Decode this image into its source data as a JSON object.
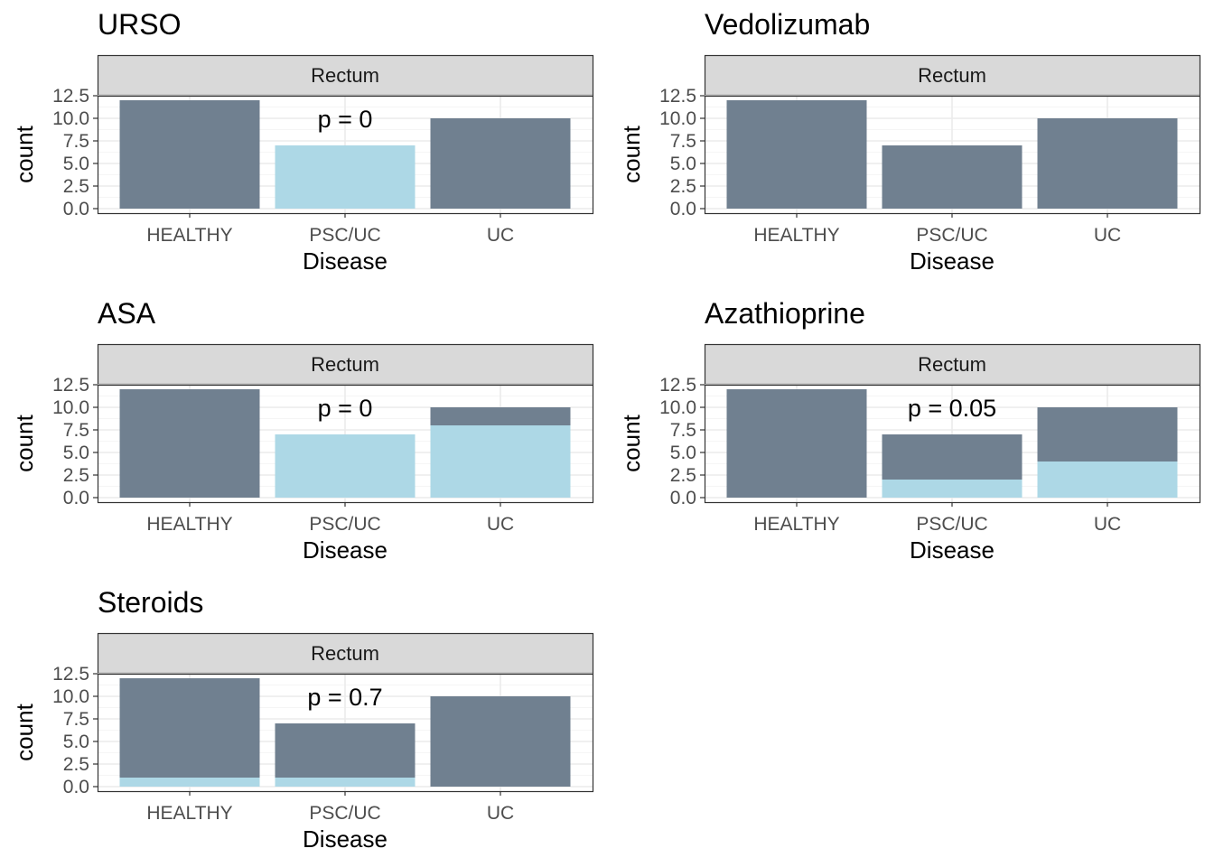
{
  "colors": {
    "dark_fill": "#708090",
    "light_fill": "#add8e6",
    "strip_bg": "#d9d9d9",
    "grid_major": "#ebebeb",
    "grid_minor": "#f5f5f5",
    "border": "#333333"
  },
  "chart_data": [
    {
      "type": "bar",
      "stacked": true,
      "title": "URSO",
      "facet": "Rectum",
      "xlabel": "Disease",
      "ylabel": "count",
      "categories": [
        "HEALTHY",
        "PSC/UC",
        "UC"
      ],
      "yticks": [
        "0.0",
        "2.5",
        "5.0",
        "7.5",
        "10.0",
        "12.5"
      ],
      "ylim": [
        0,
        12.5
      ],
      "annotation": "p = 0",
      "annotation_category": "PSC/UC",
      "annotation_y": 10,
      "series": [
        {
          "color": "#add8e6",
          "values": [
            0,
            7,
            0
          ]
        },
        {
          "color": "#708090",
          "values": [
            12,
            0,
            10
          ]
        }
      ]
    },
    {
      "type": "bar",
      "stacked": true,
      "title": "Vedolizumab",
      "facet": "Rectum",
      "xlabel": "Disease",
      "ylabel": "count",
      "categories": [
        "HEALTHY",
        "PSC/UC",
        "UC"
      ],
      "yticks": [
        "0.0",
        "2.5",
        "5.0",
        "7.5",
        "10.0",
        "12.5"
      ],
      "ylim": [
        0,
        12.5
      ],
      "annotation": "",
      "series": [
        {
          "color": "#add8e6",
          "values": [
            0,
            0,
            0
          ]
        },
        {
          "color": "#708090",
          "values": [
            12,
            7,
            10
          ]
        }
      ]
    },
    {
      "type": "bar",
      "stacked": true,
      "title": "ASA",
      "facet": "Rectum",
      "xlabel": "Disease",
      "ylabel": "count",
      "categories": [
        "HEALTHY",
        "PSC/UC",
        "UC"
      ],
      "yticks": [
        "0.0",
        "2.5",
        "5.0",
        "7.5",
        "10.0",
        "12.5"
      ],
      "ylim": [
        0,
        12.5
      ],
      "annotation": "p = 0",
      "annotation_category": "PSC/UC",
      "annotation_y": 10,
      "series": [
        {
          "color": "#add8e6",
          "values": [
            0,
            7,
            8
          ]
        },
        {
          "color": "#708090",
          "values": [
            12,
            0,
            2
          ]
        }
      ]
    },
    {
      "type": "bar",
      "stacked": true,
      "title": "Azathioprine",
      "facet": "Rectum",
      "xlabel": "Disease",
      "ylabel": "count",
      "categories": [
        "HEALTHY",
        "PSC/UC",
        "UC"
      ],
      "yticks": [
        "0.0",
        "2.5",
        "5.0",
        "7.5",
        "10.0",
        "12.5"
      ],
      "ylim": [
        0,
        12.5
      ],
      "annotation": "p = 0.05",
      "annotation_category": "PSC/UC",
      "annotation_y": 10,
      "series": [
        {
          "color": "#add8e6",
          "values": [
            0,
            2,
            4
          ]
        },
        {
          "color": "#708090",
          "values": [
            12,
            5,
            6
          ]
        }
      ]
    },
    {
      "type": "bar",
      "stacked": true,
      "title": "Steroids",
      "facet": "Rectum",
      "xlabel": "Disease",
      "ylabel": "count",
      "categories": [
        "HEALTHY",
        "PSC/UC",
        "UC"
      ],
      "yticks": [
        "0.0",
        "2.5",
        "5.0",
        "7.5",
        "10.0",
        "12.5"
      ],
      "ylim": [
        0,
        12.5
      ],
      "annotation": "p = 0.7",
      "annotation_category": "PSC/UC",
      "annotation_y": 10,
      "series": [
        {
          "color": "#add8e6",
          "values": [
            1,
            1,
            0
          ]
        },
        {
          "color": "#708090",
          "values": [
            11,
            6,
            10
          ]
        }
      ]
    }
  ]
}
